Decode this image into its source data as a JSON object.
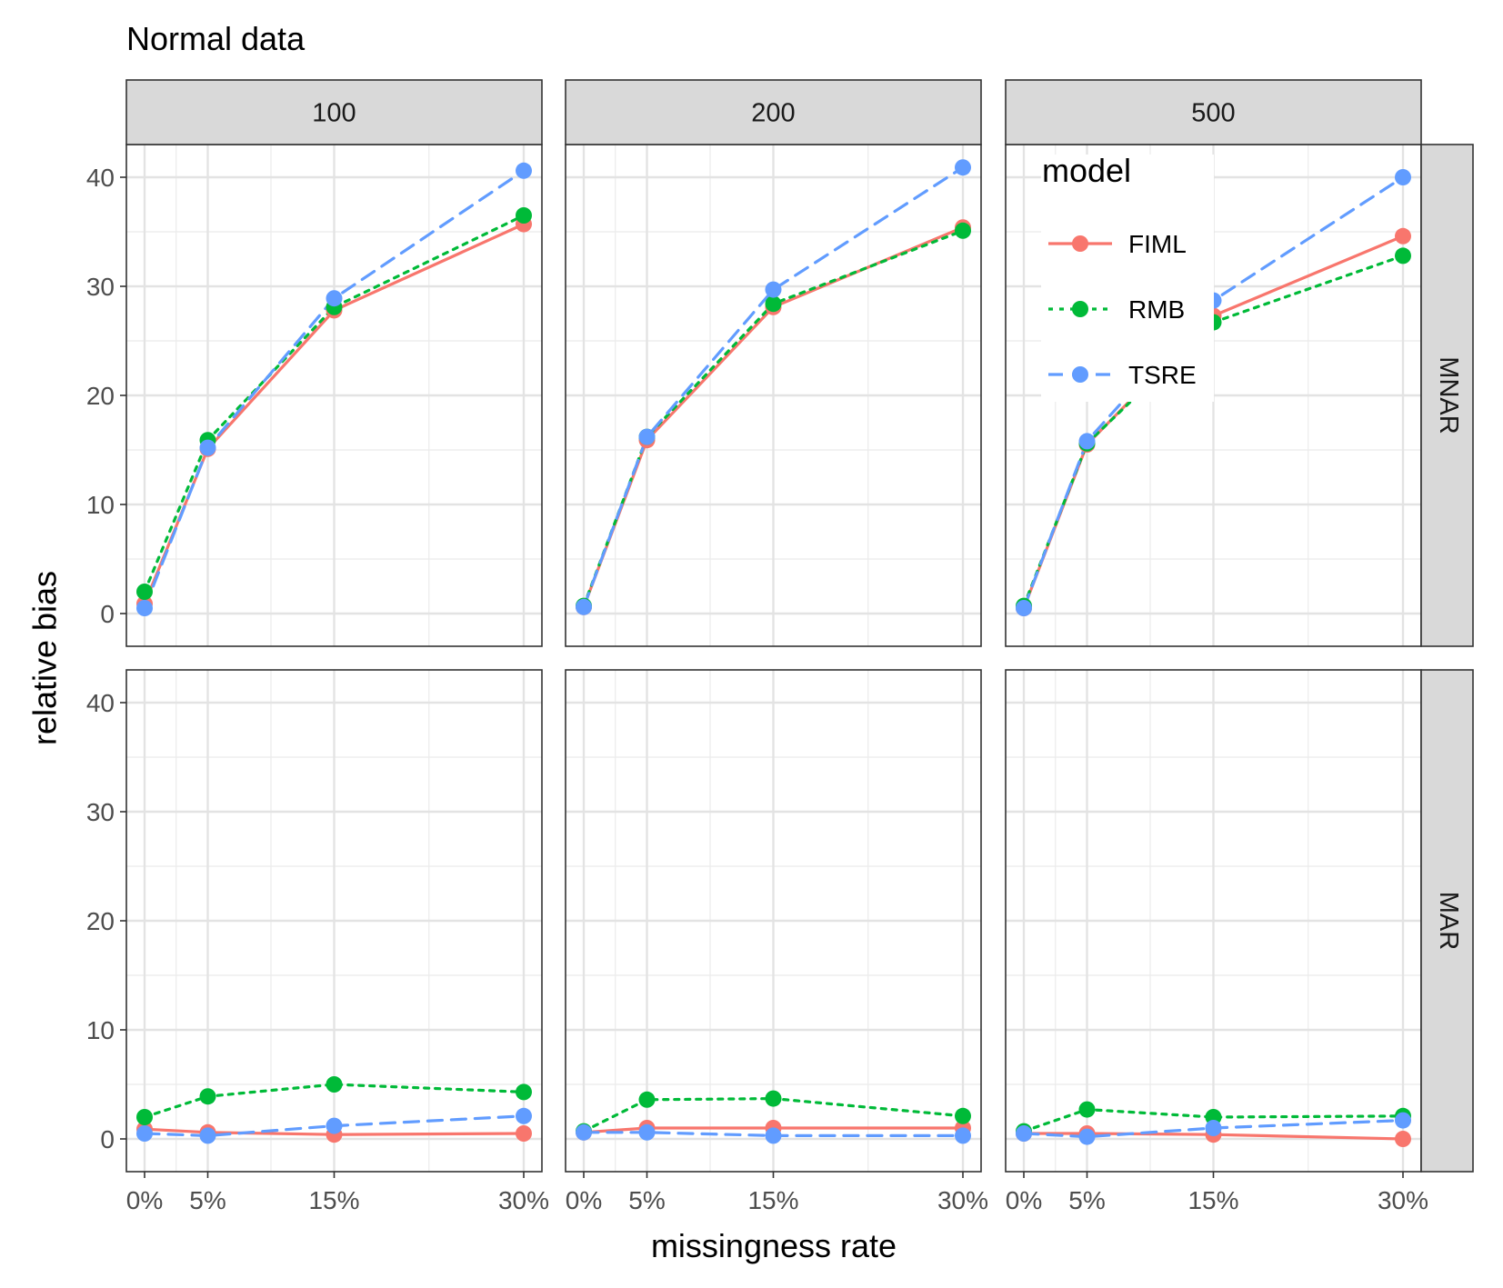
{
  "chart_data": {
    "type": "line",
    "title": "Normal data",
    "xlabel": "missingness rate",
    "ylabel": "relative bias",
    "x": [
      0,
      5,
      15,
      30
    ],
    "x_tick_labels": [
      "0%",
      "5%",
      "15%",
      "30%"
    ],
    "ylim": [
      -3,
      43
    ],
    "y_ticks": [
      0,
      10,
      20,
      30,
      40
    ],
    "grid": true,
    "facet_columns": [
      "100",
      "200",
      "500"
    ],
    "facet_rows": [
      "MNAR",
      "MAR"
    ],
    "legend": {
      "title": "model",
      "placement": "inside top-right panel",
      "entries": [
        "FIML",
        "RMB",
        "TSRE"
      ]
    },
    "series_styles": [
      {
        "name": "FIML",
        "color": "#F8766D",
        "line": "solid"
      },
      {
        "name": "RMB",
        "color": "#00BA38",
        "line": "dotted"
      },
      {
        "name": "TSRE",
        "color": "#619CFF",
        "line": "dashed"
      }
    ],
    "panels": [
      {
        "column": "100",
        "row": "MNAR",
        "series": [
          {
            "name": "FIML",
            "values": [
              0.9,
              15.1,
              27.8,
              35.7
            ]
          },
          {
            "name": "RMB",
            "values": [
              2.0,
              15.9,
              28.1,
              36.5
            ]
          },
          {
            "name": "TSRE",
            "values": [
              0.5,
              15.2,
              28.9,
              40.6
            ]
          }
        ]
      },
      {
        "column": "200",
        "row": "MNAR",
        "series": [
          {
            "name": "FIML",
            "values": [
              0.6,
              15.9,
              28.1,
              35.4
            ]
          },
          {
            "name": "RMB",
            "values": [
              0.7,
              16.2,
              28.4,
              35.1
            ]
          },
          {
            "name": "TSRE",
            "values": [
              0.6,
              16.2,
              29.7,
              40.9
            ]
          }
        ]
      },
      {
        "column": "500",
        "row": "MNAR",
        "series": [
          {
            "name": "FIML",
            "values": [
              0.5,
              15.5,
              27.3,
              34.6
            ]
          },
          {
            "name": "RMB",
            "values": [
              0.7,
              15.6,
              26.7,
              32.8
            ]
          },
          {
            "name": "TSRE",
            "values": [
              0.5,
              15.8,
              28.7,
              40.0
            ]
          }
        ]
      },
      {
        "column": "100",
        "row": "MAR",
        "series": [
          {
            "name": "FIML",
            "values": [
              0.9,
              0.6,
              0.4,
              0.5
            ]
          },
          {
            "name": "RMB",
            "values": [
              2.0,
              3.9,
              5.0,
              4.3
            ]
          },
          {
            "name": "TSRE",
            "values": [
              0.5,
              0.3,
              1.2,
              2.1
            ]
          }
        ]
      },
      {
        "column": "200",
        "row": "MAR",
        "series": [
          {
            "name": "FIML",
            "values": [
              0.6,
              1.0,
              1.0,
              1.0
            ]
          },
          {
            "name": "RMB",
            "values": [
              0.7,
              3.6,
              3.7,
              2.1
            ]
          },
          {
            "name": "TSRE",
            "values": [
              0.6,
              0.6,
              0.3,
              0.3
            ]
          }
        ]
      },
      {
        "column": "500",
        "row": "MAR",
        "series": [
          {
            "name": "FIML",
            "values": [
              0.5,
              0.5,
              0.4,
              0.0
            ]
          },
          {
            "name": "RMB",
            "values": [
              0.7,
              2.7,
              2.0,
              2.1
            ]
          },
          {
            "name": "TSRE",
            "values": [
              0.5,
              0.2,
              1.0,
              1.7
            ]
          }
        ]
      }
    ]
  }
}
